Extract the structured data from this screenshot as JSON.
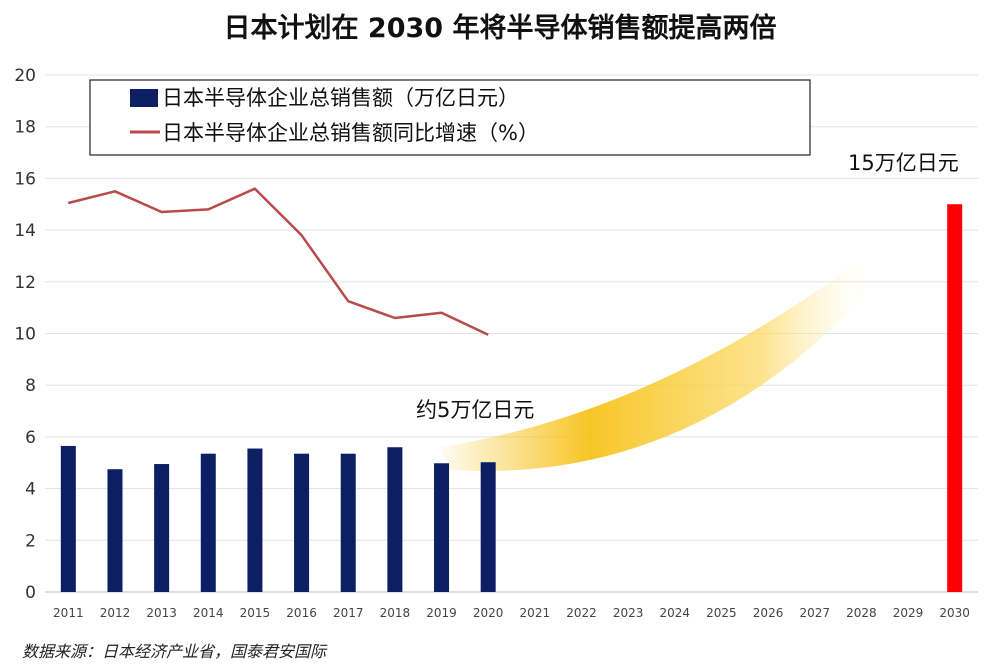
{
  "title": "日本计划在 2030 年将半导体销售额提高两倍",
  "source": "数据来源：日本经济产业省，国泰君安国际",
  "colors": {
    "bar": "#0d1f63",
    "line": "#b84a4a",
    "target_bar": "#ff0000",
    "arrow": "#f7c21a"
  },
  "chart_data": {
    "type": "bar",
    "categories": [
      "2011",
      "2012",
      "2013",
      "2014",
      "2015",
      "2016",
      "2017",
      "2018",
      "2019",
      "2020",
      "2021",
      "2022",
      "2023",
      "2024",
      "2025",
      "2026",
      "2027",
      "2028",
      "2029",
      "2030"
    ],
    "ylim": [
      0,
      20
    ],
    "yticks": [
      0,
      2,
      4,
      6,
      8,
      10,
      12,
      14,
      16,
      18,
      20
    ],
    "grid": true,
    "legend_placement": "top-left",
    "series": [
      {
        "name": "日本半导体企业总销售额（万亿日元）",
        "type": "bar",
        "values": [
          5.65,
          4.75,
          4.95,
          5.35,
          5.55,
          5.35,
          5.35,
          5.6,
          4.98,
          5.02,
          null,
          null,
          null,
          null,
          null,
          null,
          null,
          null,
          null,
          15.0
        ]
      },
      {
        "name": "日本半导体企业总销售额同比增速（%）",
        "type": "line",
        "values": [
          15.05,
          15.5,
          14.7,
          14.8,
          15.6,
          13.8,
          11.25,
          10.6,
          10.8,
          9.95,
          null,
          null,
          null,
          null,
          null,
          null,
          null,
          null,
          null,
          null
        ]
      }
    ],
    "annotations": [
      {
        "text": "约5万亿日元",
        "anchor_category": "2020"
      },
      {
        "text": "15万亿日元",
        "anchor_category": "2030"
      }
    ]
  }
}
